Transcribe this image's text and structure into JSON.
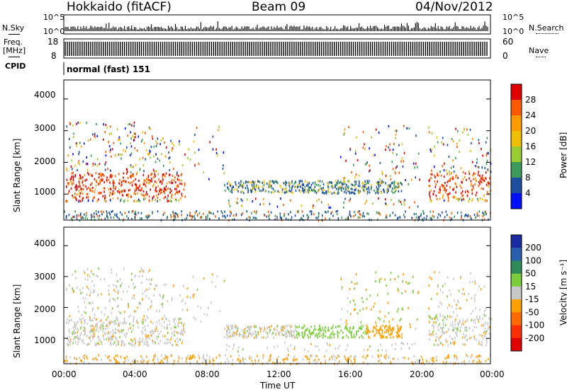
{
  "header": {
    "station": "Hokkaido (fitACF)",
    "beam": "Beam 09",
    "date": "04/Nov/2012"
  },
  "strips": {
    "nsky_label": "N.Sky",
    "nsearch_label": "N.Search",
    "nsky_ticks": [
      "10^5",
      "10^0"
    ],
    "nsearch_ticks": [
      "10^5",
      "10^0"
    ],
    "freq_label": "Freq.",
    "freq_unit": "[MHz]",
    "freq_ticks": [
      "18",
      "8"
    ],
    "nave_label": "Nave",
    "nave_ticks": [
      "60",
      "0"
    ],
    "cpid_label": "CPID",
    "cpid_text": "normal (fast) 151"
  },
  "chart_data": [
    {
      "type": "heatmap",
      "name": "power",
      "ylabel": "Slant Range [km]",
      "yticks": [
        1000,
        2000,
        3000,
        4000
      ],
      "ylim": [
        180,
        4600
      ],
      "xticks": [
        "00:00",
        "04:00",
        "08:00",
        "12:00",
        "16:00",
        "20:00",
        "00:00"
      ],
      "xlim_hours": [
        0,
        24
      ],
      "colorbar": {
        "label": "Power [dB]",
        "ticks": [
          "28",
          "24",
          "20",
          "16",
          "12",
          "8",
          "4"
        ],
        "colors": [
          "#e00000",
          "#ff5a00",
          "#ff9a00",
          "#f0c000",
          "#9acd32",
          "#3c9a5a",
          "#1c4fa0",
          "#0010ff"
        ]
      }
    },
    {
      "type": "heatmap",
      "name": "velocity",
      "ylabel": "Slant Range [km]",
      "yticks": [
        1000,
        2000,
        3000,
        4000
      ],
      "ylim": [
        180,
        4600
      ],
      "xticks": [
        "00:00",
        "04:00",
        "08:00",
        "12:00",
        "16:00",
        "20:00",
        "00:00"
      ],
      "xlabel": "Time UT",
      "xlim_hours": [
        0,
        24
      ],
      "colorbar": {
        "label": "Velocity [m s⁻¹]",
        "ticks": [
          "200",
          "100",
          "50",
          "15",
          "-15",
          "-50",
          "-100",
          "-200"
        ],
        "colors": [
          "#1a2aa0",
          "#2a5fb0",
          "#2e8b57",
          "#7ccd3c",
          "#c8c8c8",
          "#ffa000",
          "#ff6a00",
          "#ff3000",
          "#e00000"
        ]
      }
    }
  ]
}
